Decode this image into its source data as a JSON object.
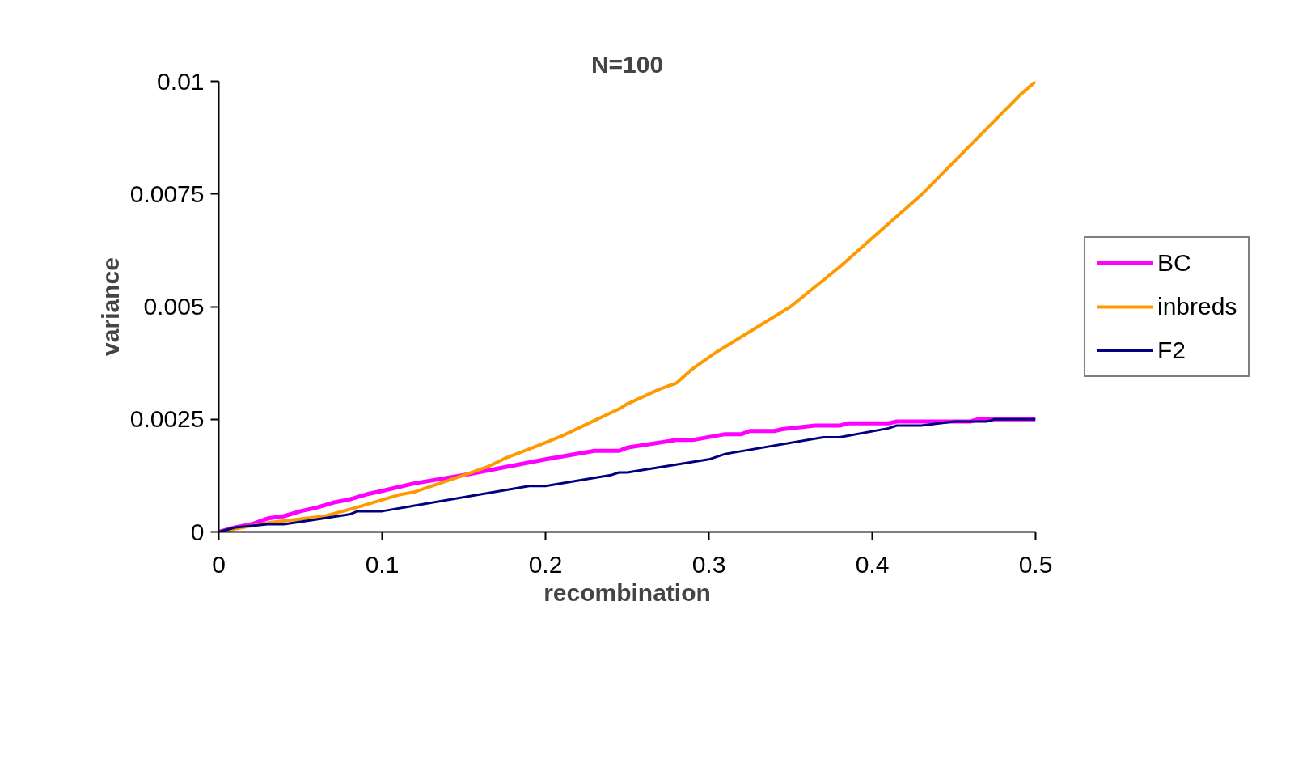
{
  "chart_data": {
    "type": "line",
    "title": "N=100",
    "xlabel": "recombination",
    "ylabel": "variance",
    "xlim": [
      0,
      0.5
    ],
    "xticks": [
      0,
      0.1,
      0.2,
      0.3,
      0.4,
      0.5
    ],
    "ylim": [
      0,
      0.01
    ],
    "yticks": [
      0,
      0.0025,
      0.005,
      0.0075,
      0.01
    ],
    "grid": false,
    "legend": "right",
    "marker": "none",
    "line_style": "solid",
    "series": [
      {
        "name": "BC",
        "color": "#ff00ff",
        "x": [
          0,
          0.01,
          0.02,
          0.03,
          0.04,
          0.05,
          0.06,
          0.07,
          0.08,
          0.09,
          0.1,
          0.12,
          0.15,
          0.2,
          0.23,
          0.245,
          0.25,
          0.28,
          0.29,
          0.31,
          0.32,
          0.325,
          0.34,
          0.345,
          0.365,
          0.38,
          0.385,
          0.41,
          0.415,
          0.46,
          0.465,
          0.5
        ],
        "values": [
          0,
          0.0001,
          0.00017,
          0.0003,
          0.00035,
          0.00046,
          0.00054,
          0.00065,
          0.00072,
          0.00083,
          0.00091,
          0.00108,
          0.00126,
          0.00161,
          0.0018,
          0.0018,
          0.00187,
          0.00204,
          0.00204,
          0.00217,
          0.00217,
          0.00224,
          0.00224,
          0.00228,
          0.00236,
          0.00236,
          0.00241,
          0.00241,
          0.00245,
          0.00245,
          0.0025,
          0.0025
        ]
      },
      {
        "name": "inbreds",
        "color": "#ff9900",
        "x": [
          0,
          0.03,
          0.065,
          0.085,
          0.11,
          0.12,
          0.15,
          0.165,
          0.175,
          0.195,
          0.21,
          0.245,
          0.25,
          0.27,
          0.28,
          0.29,
          0.305,
          0.35,
          0.38,
          0.415,
          0.43,
          0.49,
          0.5
        ],
        "values": [
          0,
          0.0002,
          0.00035,
          0.00055,
          0.00082,
          0.00089,
          0.00126,
          0.00145,
          0.00163,
          0.00191,
          0.00213,
          0.00273,
          0.00284,
          0.00317,
          0.0033,
          0.00362,
          0.004,
          0.005,
          0.00588,
          0.007,
          0.00748,
          0.00968,
          0.01
        ]
      },
      {
        "name": "F2",
        "color": "#000080",
        "x": [
          0,
          0.01,
          0.03,
          0.04,
          0.06,
          0.08,
          0.085,
          0.1,
          0.19,
          0.2,
          0.24,
          0.245,
          0.25,
          0.3,
          0.31,
          0.37,
          0.38,
          0.41,
          0.415,
          0.43,
          0.45,
          0.47,
          0.475,
          0.5
        ],
        "values": [
          0,
          0.0001,
          0.00017,
          0.00017,
          0.00028,
          0.00039,
          0.00046,
          0.00046,
          0.00102,
          0.00102,
          0.00126,
          0.00132,
          0.00132,
          0.00161,
          0.00173,
          0.0021,
          0.0021,
          0.0023,
          0.00236,
          0.00236,
          0.00245,
          0.00245,
          0.0025,
          0.0025
        ]
      }
    ]
  }
}
